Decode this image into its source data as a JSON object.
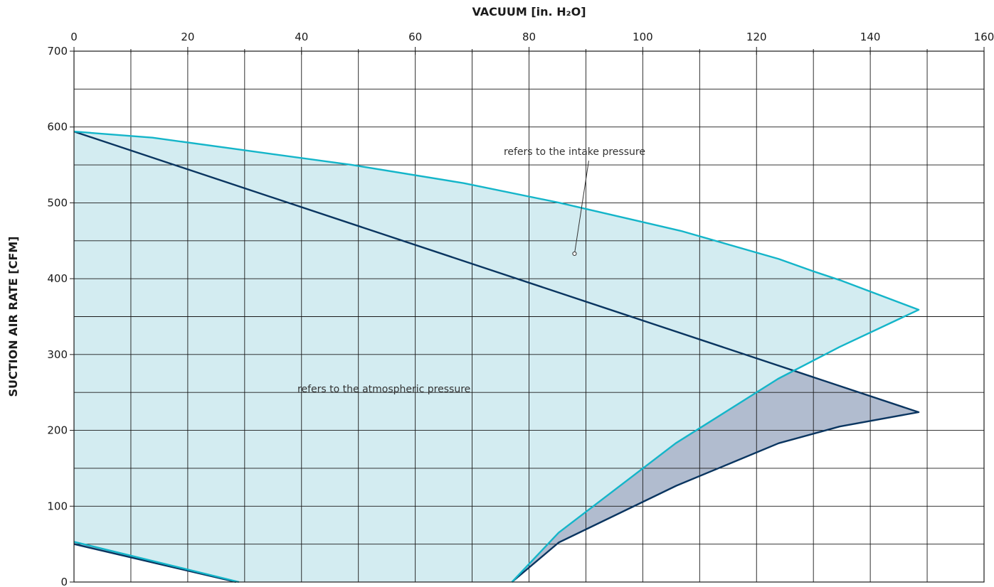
{
  "chart_data": {
    "type": "area",
    "xlabel": "VACUUM  [in. H₂O]",
    "ylabel": "SUCTION AIR RATE  [CFM]",
    "xlim": [
      0,
      160
    ],
    "ylim": [
      0,
      700
    ],
    "x_ticks": [
      0,
      20,
      40,
      60,
      80,
      100,
      120,
      140,
      160
    ],
    "y_ticks": [
      0,
      100,
      200,
      300,
      400,
      500,
      600,
      700
    ],
    "x_tick_labels": [
      "0",
      "20",
      "40",
      "60",
      "80",
      "100",
      "120",
      "140",
      "160"
    ],
    "y_tick_labels": [
      "0",
      "100",
      "200",
      "300",
      "400",
      "500",
      "600",
      "700"
    ],
    "grid": true,
    "series": [
      {
        "color": "#0a3560",
        "fill": "#b1bccf",
        "upper": [
          [
            0,
            594
          ],
          [
            148.5,
            224
          ]
        ],
        "lower": [
          [
            148.5,
            224
          ],
          [
            134.6,
            205
          ],
          [
            123.9,
            183
          ],
          [
            105.9,
            127
          ],
          [
            85.2,
            52
          ],
          [
            77,
            0
          ]
        ],
        "lower_left": [
          [
            0,
            50
          ],
          [
            28.5,
            0
          ]
        ]
      },
      {
        "color": "#14b5c9",
        "fill": "#d3ecf1",
        "upper": [
          [
            0,
            594
          ],
          [
            13.8,
            586
          ],
          [
            27.4,
            572
          ],
          [
            48.9,
            550
          ],
          [
            68.5,
            526
          ],
          [
            85.4,
            500
          ],
          [
            106.7,
            463
          ],
          [
            123.9,
            426
          ],
          [
            129.9,
            410
          ],
          [
            134.7,
            398
          ],
          [
            148.5,
            359
          ]
        ],
        "lower": [
          [
            148.5,
            359
          ],
          [
            134.6,
            310
          ],
          [
            123.8,
            268
          ],
          [
            105.8,
            183
          ],
          [
            85.2,
            65
          ],
          [
            77,
            0
          ]
        ],
        "lower_left": [
          [
            0,
            53
          ],
          [
            29,
            0
          ]
        ]
      }
    ],
    "annotations": [
      {
        "text": "refers to the intake pressure",
        "x": 88,
        "y": 563,
        "pointer": [
          88,
          433
        ]
      },
      {
        "text": "refers to the atmospheric pressure",
        "x": 54.5,
        "y": 250
      }
    ]
  }
}
